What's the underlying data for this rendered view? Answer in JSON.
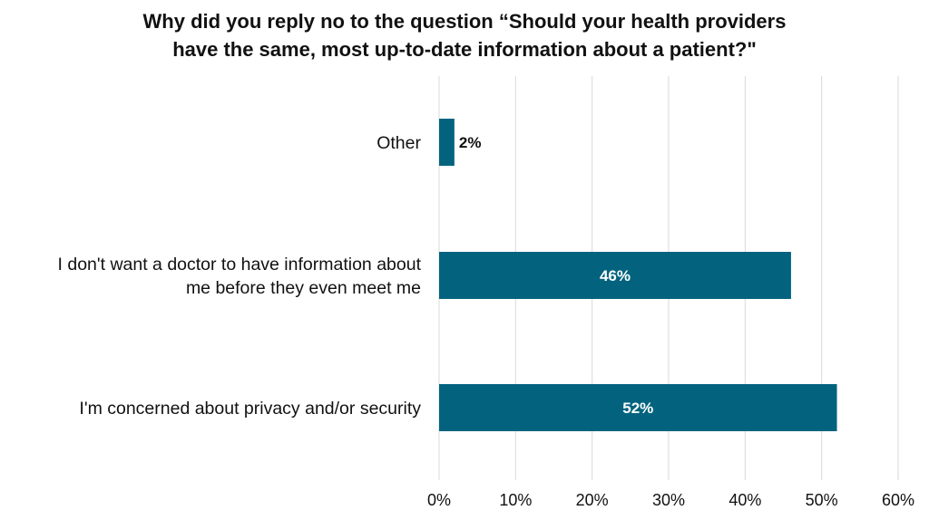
{
  "chart_data": {
    "type": "bar",
    "orientation": "horizontal",
    "title_lines": [
      "Why did you reply no to the question “Should your health providers",
      "have the same, most up-to-date information about a patient?\""
    ],
    "categories": [
      [
        "Other"
      ],
      [
        "I don't want a doctor to have information about",
        "me before they even meet me"
      ],
      [
        "I'm concerned about privacy and/or security"
      ]
    ],
    "values": [
      2,
      46,
      52
    ],
    "data_labels": [
      "2%",
      "46%",
      "52%"
    ],
    "xlim": [
      0,
      60
    ],
    "xticks": [
      0,
      10,
      20,
      30,
      40,
      50,
      60
    ],
    "xtick_labels": [
      "0%",
      "10%",
      "20%",
      "30%",
      "40%",
      "50%",
      "60%"
    ],
    "grid": true,
    "legend": "none",
    "colors": {
      "bar": "#03637f",
      "grid": "#d9d9d9",
      "label_inside": "#ffffff",
      "label_outside": "#111111"
    }
  }
}
